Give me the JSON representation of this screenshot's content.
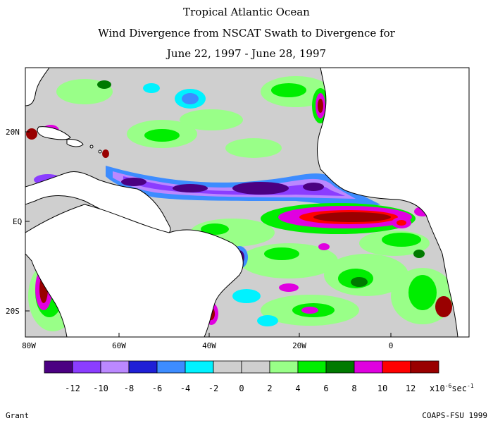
{
  "title": {
    "line1": "Tropical Atlantic Ocean",
    "line2": "Wind Divergence from NSCAT Swath to Divergence for",
    "line3": "June 22, 1997 - June 28, 1997"
  },
  "map": {
    "lat_labels": [
      "20N",
      "EQ",
      "20S"
    ],
    "lon_labels": [
      "80W",
      "60W",
      "40W",
      "20W",
      "0"
    ]
  },
  "colorbar": {
    "colors": [
      "#4b0082",
      "#8b3dff",
      "#bb88ff",
      "#1f1fd6",
      "#3d8cff",
      "#00f2ff",
      "#cfcfcf",
      "#cfcfcf",
      "#99ff88",
      "#00ee00",
      "#007a00",
      "#e000e0",
      "#ff0000",
      "#990000"
    ],
    "labels": [
      "-12",
      "-10",
      "-8",
      "-6",
      "-4",
      "-2",
      "0",
      "2",
      "4",
      "6",
      "8",
      "10",
      "12"
    ],
    "unit": "x10",
    "unit_exp": "-6",
    "unit_tail": "sec",
    "unit_tail_exp": "-1"
  },
  "footer": {
    "left": "Grant",
    "right": "COAPS-FSU 1999"
  }
}
